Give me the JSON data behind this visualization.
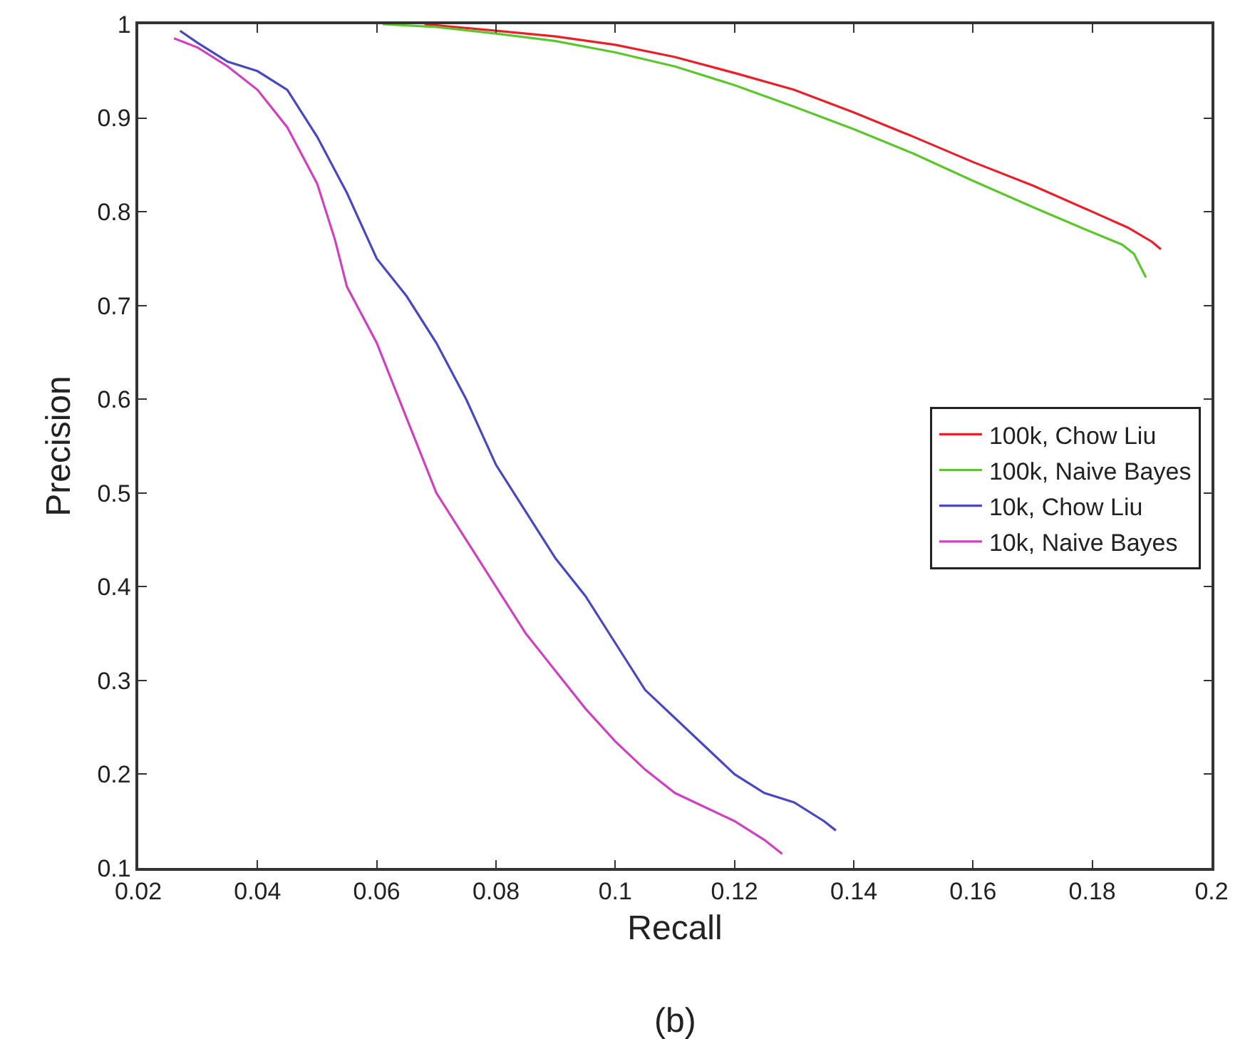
{
  "chart_data": {
    "type": "line",
    "xlabel": "Recall",
    "ylabel": "Precision",
    "annotations": [
      "(b)"
    ],
    "xlim": [
      0.02,
      0.2
    ],
    "ylim": [
      0.1,
      1
    ],
    "xticks": [
      0.02,
      0.04,
      0.06,
      0.08,
      0.1,
      0.12,
      0.14,
      0.16,
      0.18,
      0.2
    ],
    "yticks": [
      0.1,
      0.2,
      0.3,
      0.4,
      0.5,
      0.6,
      0.7,
      0.8,
      0.9,
      1
    ],
    "grid": false,
    "legend": "right",
    "marker": "none",
    "line_style": "solid",
    "series": [
      {
        "name": "100k, Chow Liu",
        "color": "#e8202a",
        "x": [
          0.068,
          0.08,
          0.09,
          0.1,
          0.11,
          0.12,
          0.13,
          0.14,
          0.15,
          0.16,
          0.17,
          0.18,
          0.186,
          0.19,
          0.1915
        ],
        "values": [
          1.0,
          0.993,
          0.987,
          0.978,
          0.965,
          0.948,
          0.93,
          0.906,
          0.88,
          0.853,
          0.828,
          0.8,
          0.783,
          0.768,
          0.76
        ]
      },
      {
        "name": "100k, Naive Bayes",
        "color": "#5cc62e",
        "x": [
          0.061,
          0.07,
          0.08,
          0.09,
          0.1,
          0.11,
          0.12,
          0.13,
          0.14,
          0.15,
          0.16,
          0.17,
          0.18,
          0.185,
          0.187,
          0.189
        ],
        "values": [
          1.0,
          0.997,
          0.99,
          0.982,
          0.97,
          0.955,
          0.935,
          0.912,
          0.888,
          0.862,
          0.833,
          0.805,
          0.778,
          0.765,
          0.755,
          0.73
        ]
      },
      {
        "name": "10k, Chow Liu",
        "color": "#4848c0",
        "x": [
          0.027,
          0.03,
          0.035,
          0.04,
          0.045,
          0.05,
          0.055,
          0.06,
          0.065,
          0.07,
          0.075,
          0.08,
          0.085,
          0.09,
          0.095,
          0.1,
          0.105,
          0.11,
          0.115,
          0.12,
          0.125,
          0.13,
          0.135,
          0.137
        ],
        "values": [
          0.993,
          0.98,
          0.96,
          0.95,
          0.93,
          0.88,
          0.82,
          0.75,
          0.71,
          0.66,
          0.6,
          0.53,
          0.48,
          0.43,
          0.39,
          0.34,
          0.29,
          0.26,
          0.23,
          0.2,
          0.18,
          0.17,
          0.15,
          0.14
        ]
      },
      {
        "name": "10k, Naive Bayes",
        "color": "#d040c0",
        "x": [
          0.026,
          0.03,
          0.035,
          0.04,
          0.045,
          0.05,
          0.053,
          0.055,
          0.06,
          0.065,
          0.07,
          0.075,
          0.08,
          0.085,
          0.09,
          0.095,
          0.1,
          0.105,
          0.11,
          0.115,
          0.12,
          0.125,
          0.128
        ],
        "values": [
          0.985,
          0.975,
          0.955,
          0.93,
          0.89,
          0.83,
          0.77,
          0.72,
          0.66,
          0.58,
          0.5,
          0.45,
          0.4,
          0.35,
          0.31,
          0.27,
          0.235,
          0.205,
          0.18,
          0.165,
          0.15,
          0.13,
          0.115
        ]
      }
    ]
  }
}
